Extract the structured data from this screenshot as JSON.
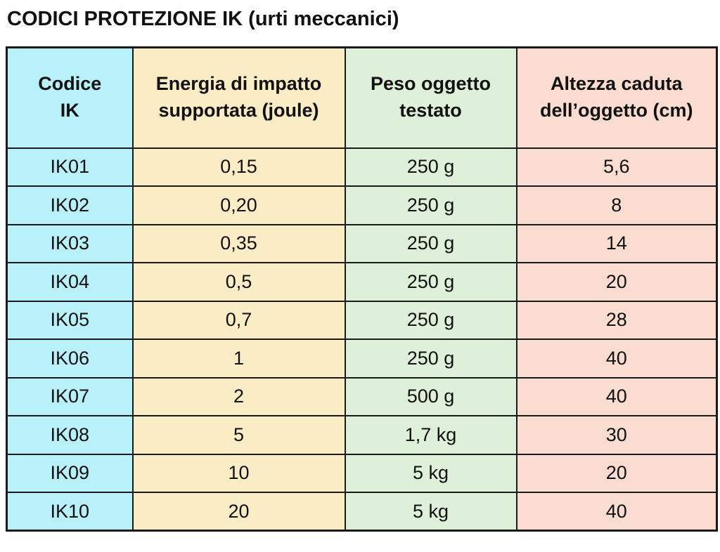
{
  "page": {
    "title": "CODICI PROTEZIONE IK (urti meccanici)"
  },
  "table": {
    "columns": [
      {
        "label": "Codice\nIK",
        "color": "#b8f1fa"
      },
      {
        "label": "Energia di impatto\nsupportata (joule)",
        "color": "#faecc5"
      },
      {
        "label": "Peso oggetto\ntestato",
        "color": "#deefda"
      },
      {
        "label": "Altezza caduta\ndell’oggetto (cm)",
        "color": "#fadcd0"
      }
    ],
    "rows": [
      {
        "code": "IK01",
        "energy": "0,15",
        "weight": "250 g",
        "height": "5,6"
      },
      {
        "code": "IK02",
        "energy": "0,20",
        "weight": "250 g",
        "height": "8"
      },
      {
        "code": "IK03",
        "energy": "0,35",
        "weight": "250 g",
        "height": "14"
      },
      {
        "code": "IK04",
        "energy": "0,5",
        "weight": "250 g",
        "height": "20"
      },
      {
        "code": "IK05",
        "energy": "0,7",
        "weight": "250 g",
        "height": "28"
      },
      {
        "code": "IK06",
        "energy": "1",
        "weight": "250 g",
        "height": "40"
      },
      {
        "code": "IK07",
        "energy": "2",
        "weight": "500 g",
        "height": "40"
      },
      {
        "code": "IK08",
        "energy": "5",
        "weight": "1,7 kg",
        "height": "30"
      },
      {
        "code": "IK09",
        "energy": "10",
        "weight": "5 kg",
        "height": "20"
      },
      {
        "code": "IK10",
        "energy": "20",
        "weight": "5 kg",
        "height": "40"
      }
    ]
  }
}
